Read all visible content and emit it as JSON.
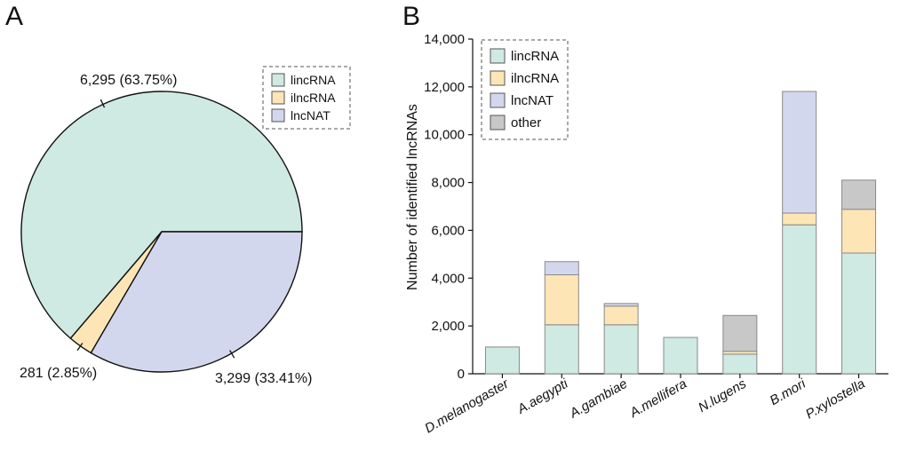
{
  "panel_labels": {
    "a": "A",
    "b": "B"
  },
  "chart_data": [
    {
      "type": "pie",
      "slices": [
        {
          "name": "lincRNA",
          "value": 6295,
          "label": "6,295 (63.75%)",
          "color": "#cfe9e3"
        },
        {
          "name": "ilncRNA",
          "value": 281,
          "label": "281 (2.85%)",
          "color": "#fde5b5"
        },
        {
          "name": "lncNAT",
          "value": 3299,
          "label": "3,299 (33.41%)",
          "color": "#d3d7ee"
        }
      ],
      "legend": [
        "lincRNA",
        "ilncRNA",
        "lncNAT"
      ],
      "legend_position": "top-right"
    },
    {
      "type": "bar",
      "stacked": true,
      "categories": [
        "D.melanogaster",
        "A.aegypti",
        "A.gambiae",
        "A.mellifera",
        "N.lugens",
        "B.mori",
        "P.xylostella"
      ],
      "series": [
        {
          "name": "lincRNA",
          "color": "#cfe9e3",
          "values": [
            1120,
            2050,
            2050,
            1520,
            820,
            6230,
            5050
          ]
        },
        {
          "name": "ilncRNA",
          "color": "#fde5b5",
          "values": [
            0,
            2090,
            780,
            0,
            120,
            490,
            1830
          ]
        },
        {
          "name": "lncNAT",
          "color": "#d3d7ee",
          "values": [
            0,
            550,
            110,
            0,
            0,
            5090,
            0
          ]
        },
        {
          "name": "other",
          "color": "#c8c8c8",
          "values": [
            0,
            0,
            0,
            0,
            1500,
            0,
            1220
          ]
        }
      ],
      "ylabel": "Number of identified lncRNAs",
      "xlabel": "",
      "ylim": [
        0,
        14000
      ],
      "yticks": [
        "0",
        "2,000",
        "4,000",
        "6,000",
        "8,000",
        "10,000",
        "12,000",
        "14,000"
      ],
      "legend_position": "top-left"
    }
  ]
}
